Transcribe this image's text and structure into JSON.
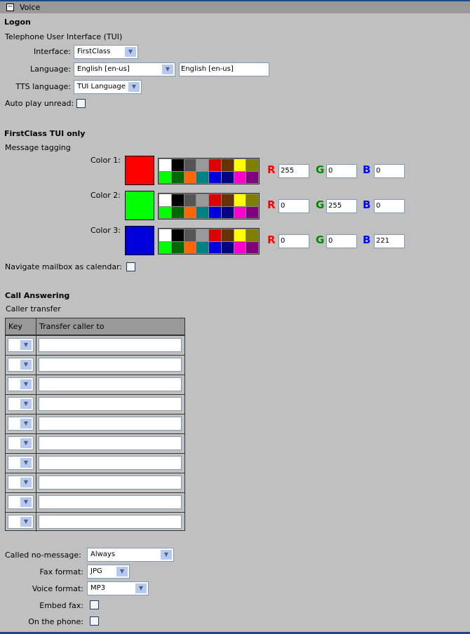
{
  "header": {
    "title": "Voice",
    "toggle": "−"
  },
  "logon": {
    "heading": "Logon",
    "subheading": "Telephone User Interface (TUI)",
    "interface_label": "Interface:",
    "interface_value": "FirstClass",
    "language_label": "Language:",
    "language_value": "English [en-us]",
    "language_text": "English [en-us]",
    "tts_label": "TTS language:",
    "tts_value": "TUI Language",
    "autoplay_label": "Auto play unread:"
  },
  "tui": {
    "heading": "FirstClass TUI only",
    "subheading": "Message tagging",
    "colors": [
      {
        "label": "Color 1:",
        "swatch": "#ff0000",
        "r": "255",
        "g": "0",
        "b": "0"
      },
      {
        "label": "Color 2:",
        "swatch": "#00ff00",
        "r": "0",
        "g": "255",
        "b": "0"
      },
      {
        "label": "Color 3:",
        "swatch": "#0000dd",
        "r": "0",
        "g": "0",
        "b": "221"
      }
    ],
    "palette": [
      "#ffffff",
      "#000000",
      "#555555",
      "#999999",
      "#dd0000",
      "#663300",
      "#ffff00",
      "#808000",
      "#00ff00",
      "#006600",
      "#ff6600",
      "#008080",
      "#0000dd",
      "#000080",
      "#ff00cc",
      "#800080"
    ],
    "r_label": "R",
    "g_label": "G",
    "b_label": "B",
    "navigate_label": "Navigate mailbox as calendar:"
  },
  "call": {
    "heading": "Call Answering",
    "subheading": "Caller transfer",
    "col_key": "Key",
    "col_transfer": "Transfer caller to",
    "row_count": 10,
    "no_message_label": "Called no-message:",
    "no_message_value": "Always",
    "fax_label": "Fax format:",
    "fax_value": "JPG",
    "voice_label": "Voice format:",
    "voice_value": "MP3",
    "embed_label": "Embed fax:",
    "phone_label": "On the phone:"
  }
}
